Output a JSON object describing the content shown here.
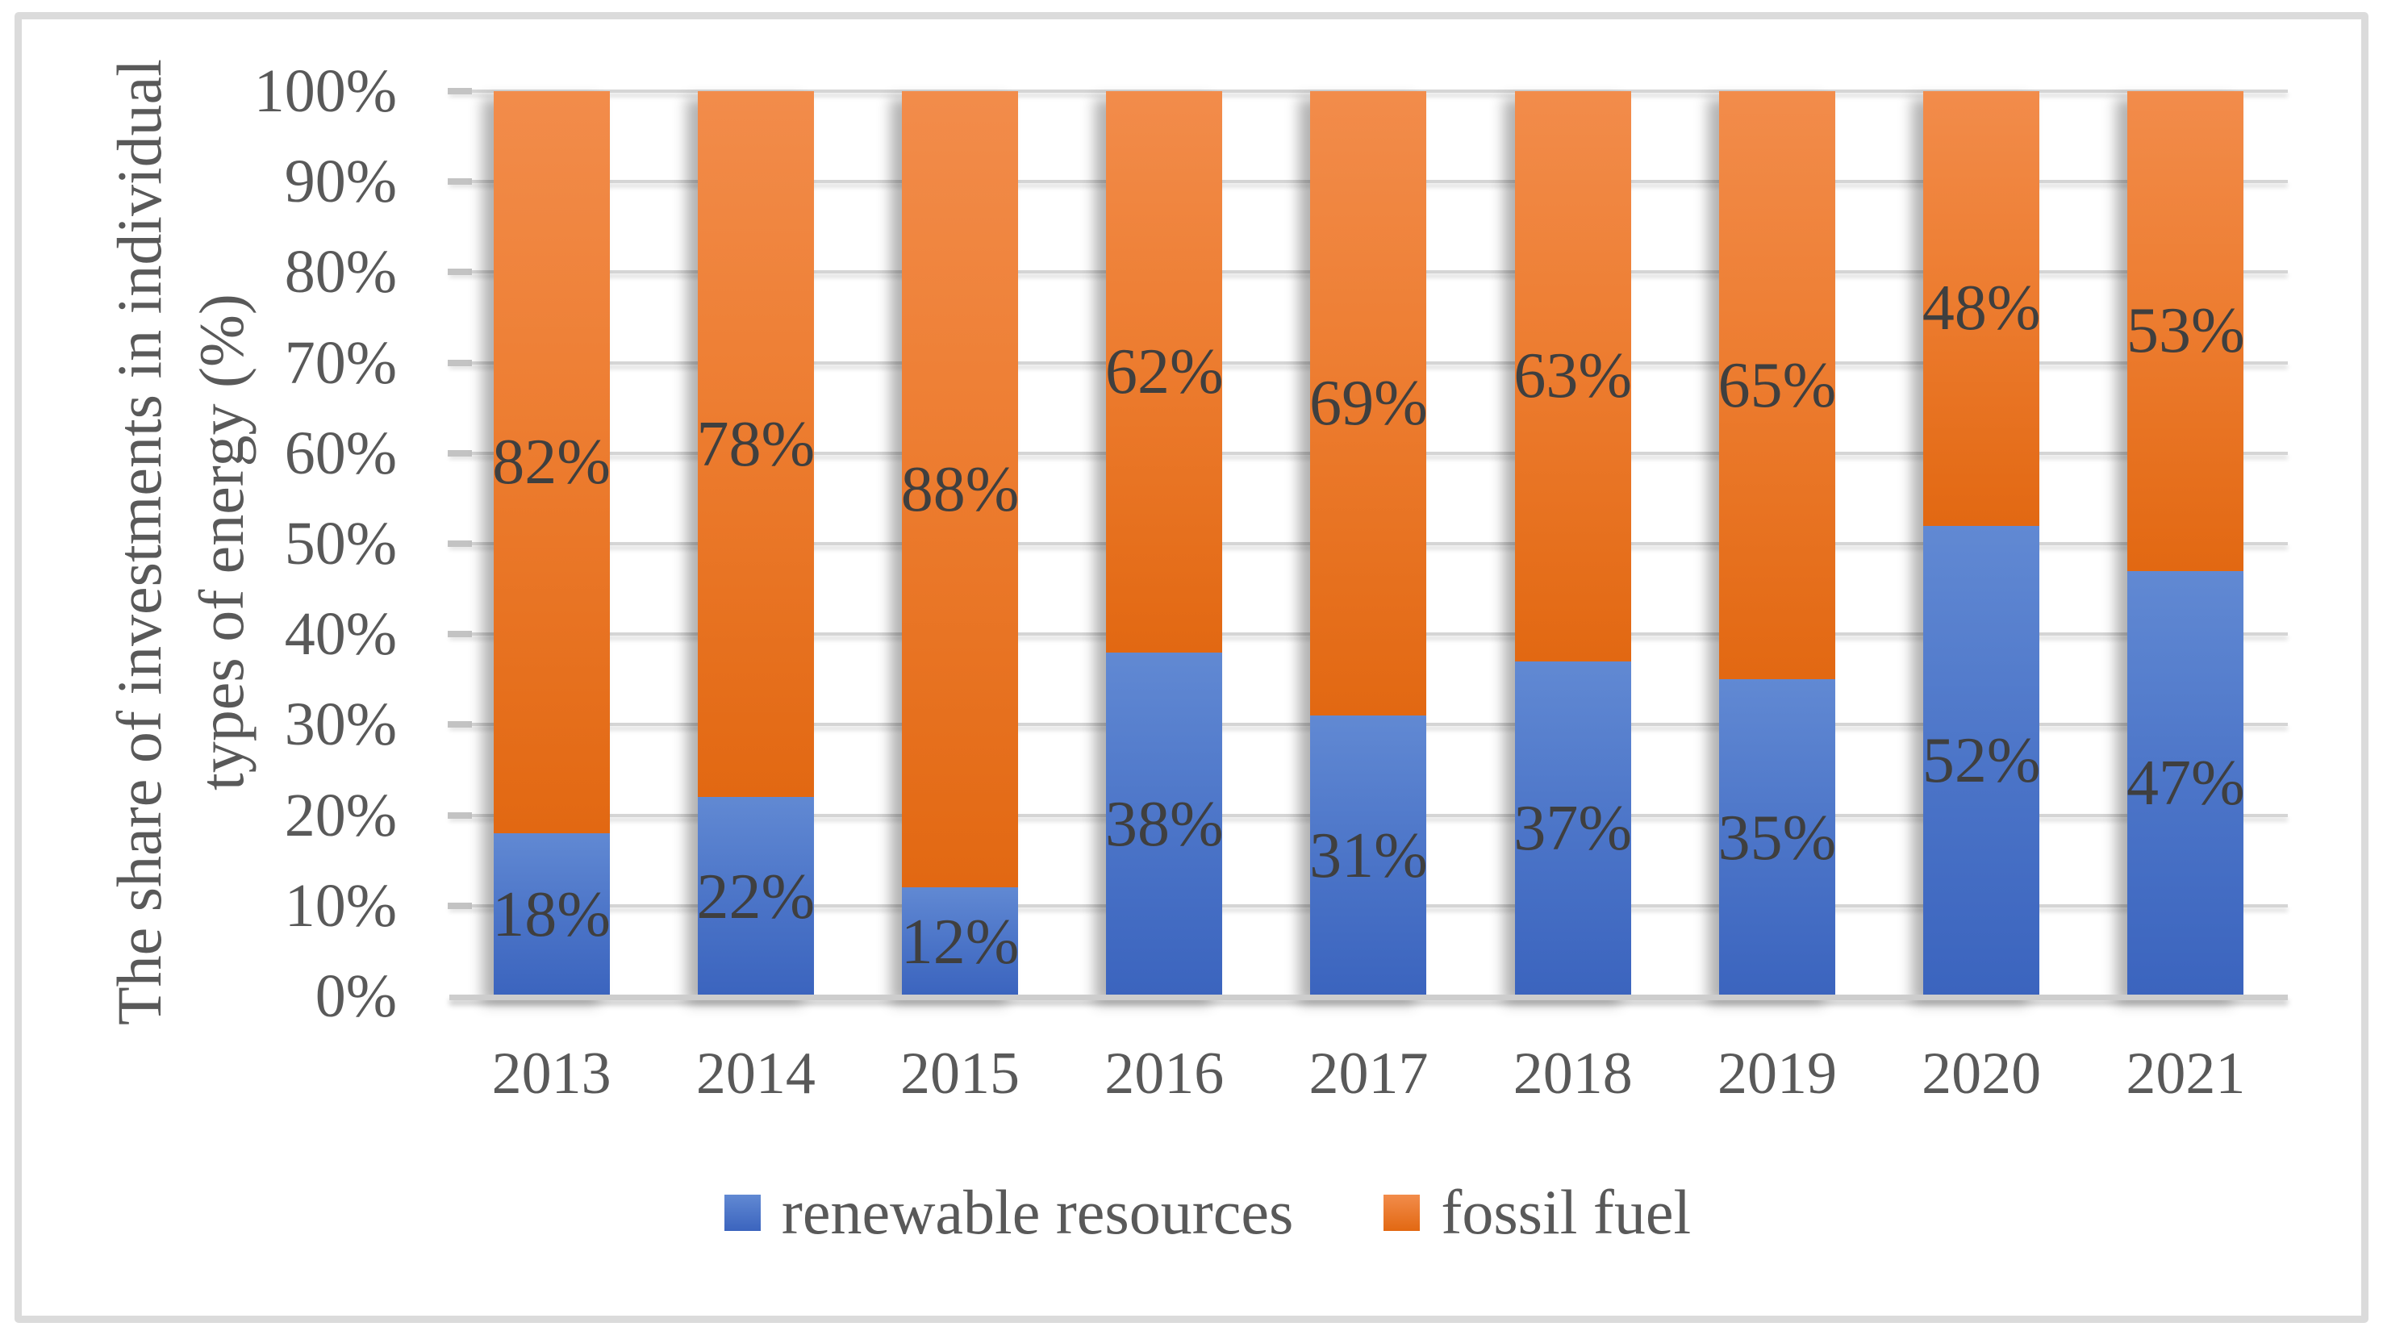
{
  "figure": {
    "background": "#FFFFFF",
    "frame_color": "#DBDBDB"
  },
  "chart_data": {
    "type": "bar",
    "stacked": true,
    "orientation": "vertical",
    "categories": [
      "2013",
      "2014",
      "2015",
      "2016",
      "2017",
      "2018",
      "2019",
      "2020",
      "2021"
    ],
    "series": [
      {
        "name": "renewable resources",
        "values": [
          18,
          22,
          12,
          38,
          31,
          37,
          35,
          52,
          47
        ],
        "color": "#4472C4",
        "gradient_top": "#6189D3",
        "gradient_bottom": "#3B64BE"
      },
      {
        "name": "fossil fuel",
        "values": [
          82,
          78,
          88,
          62,
          69,
          63,
          65,
          48,
          53
        ],
        "color": "#ED7D31",
        "gradient_top": "#F28C4B",
        "gradient_bottom": "#E26812"
      }
    ],
    "data_label_suffix": "%",
    "ylabel_lines": [
      "The share of investments in individual",
      "types of energy (%)"
    ],
    "y_ticks": [
      "0%",
      "10%",
      "20%",
      "30%",
      "40%",
      "50%",
      "60%",
      "70%",
      "80%",
      "90%",
      "100%"
    ],
    "ylim": [
      0,
      100
    ],
    "grid": true,
    "legend_position": "bottom",
    "xlabel": "",
    "title": ""
  },
  "colors": {
    "axis_text": "#595959",
    "data_label_text": "#3F3F3F",
    "gridline": "#D5D5D5",
    "axis_line": "#CDCDCD"
  }
}
